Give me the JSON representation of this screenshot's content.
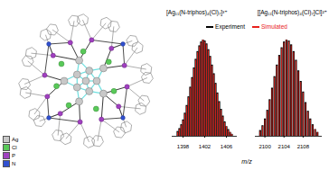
{
  "chart_data": [
    {
      "type": "stem",
      "title": "[Ag₁₁(N-triphos)₄(Cl)₇]³⁺",
      "x": [
        1397,
        1397.33,
        1397.67,
        1398,
        1398.33,
        1398.67,
        1399,
        1399.33,
        1399.67,
        1400,
        1400.33,
        1400.67,
        1401,
        1401.33,
        1401.67,
        1402,
        1402.33,
        1402.67,
        1403,
        1403.33,
        1403.67,
        1404,
        1404.33,
        1404.67,
        1405,
        1405.33,
        1405.67,
        1406,
        1406.33,
        1406.67,
        1407
      ],
      "series": [
        {
          "name": "Experiment",
          "color": "#000000",
          "values": [
            5,
            8,
            12,
            17,
            24,
            32,
            41,
            51,
            61,
            71,
            80,
            88,
            94,
            98,
            100,
            99,
            96,
            90,
            83,
            74,
            65,
            55,
            45,
            36,
            28,
            21,
            15,
            10,
            7,
            4,
            2
          ]
        },
        {
          "name": "Simulated",
          "color": "#e8211c",
          "values": [
            4,
            7,
            11,
            16,
            23,
            31,
            40,
            50,
            60,
            70,
            79,
            87,
            93,
            97,
            100,
            98,
            95,
            89,
            82,
            73,
            64,
            54,
            44,
            35,
            27,
            20,
            14,
            10,
            6,
            4,
            2
          ]
        }
      ],
      "xlim": [
        1396,
        1408
      ],
      "xticks": [
        1398,
        1402,
        1406
      ],
      "ylim": [
        0,
        100
      ],
      "tick_labels": "x",
      "legend": "top"
    },
    {
      "type": "stem",
      "title": "[[Ag₁₁(N-triphos)₄(Cl)₇]Cl]²⁺",
      "x": [
        2099,
        2099.5,
        2100,
        2100.5,
        2101,
        2101.5,
        2102,
        2102.5,
        2103,
        2103.5,
        2104,
        2104.5,
        2105,
        2105.5,
        2106,
        2106.5,
        2107,
        2107.5,
        2108,
        2108.5,
        2109,
        2109.5,
        2110,
        2110.5,
        2111
      ],
      "series": [
        {
          "name": "Experiment",
          "color": "#000000",
          "values": [
            6,
            11,
            18,
            27,
            38,
            50,
            62,
            74,
            84,
            92,
            98,
            100,
            99,
            95,
            88,
            79,
            68,
            57,
            46,
            35,
            26,
            18,
            12,
            7,
            4
          ]
        },
        {
          "name": "Simulated",
          "color": "#e8211c",
          "values": [
            5,
            10,
            17,
            26,
            37,
            49,
            61,
            73,
            83,
            91,
            97,
            100,
            98,
            94,
            87,
            78,
            67,
            56,
            45,
            34,
            25,
            17,
            11,
            7,
            4
          ]
        }
      ],
      "xlim": [
        2098,
        2112
      ],
      "xticks": [
        2100,
        2104,
        2108
      ],
      "ylim": [
        0,
        100
      ],
      "tick_labels": "x"
    }
  ],
  "shared": {
    "x_label": "m/z"
  },
  "structure": {
    "legend": [
      {
        "label": "Ag",
        "color": "#c8c8c8"
      },
      {
        "label": "Cl",
        "color": "#59c959"
      },
      {
        "label": "P",
        "color": "#a040c0"
      },
      {
        "label": "N",
        "color": "#3050d0"
      }
    ]
  }
}
